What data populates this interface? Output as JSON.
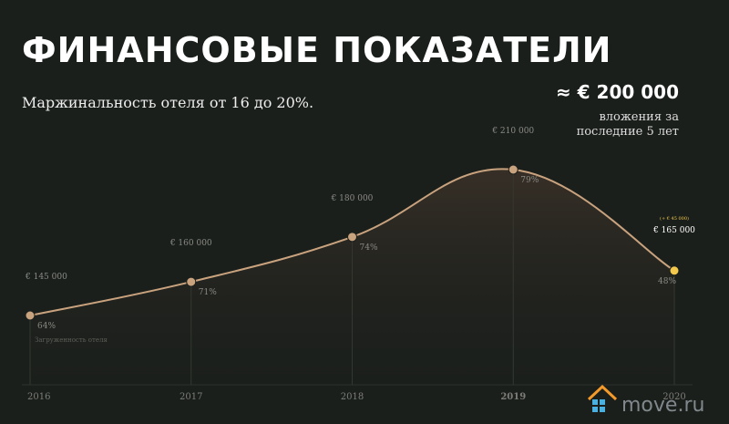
{
  "chart_data": {
    "type": "line",
    "title": "ФИНАНСОВЫЕ ПОКАЗАТЕЛИ",
    "subtitle": "Маржинальность отеля от 16 до 20%.",
    "callout": {
      "value": "≈ € 200 000",
      "text": [
        "вложения за",
        "последние 5 лет"
      ]
    },
    "categories": [
      "2016",
      "2017",
      "2018",
      "2019",
      "2020"
    ],
    "values": [
      145000,
      160000,
      180000,
      210000,
      165000
    ],
    "value_labels": [
      "€ 145 000",
      "€ 160 000",
      "€ 180 000",
      "€ 210 000",
      "€ 165 000"
    ],
    "annotation": "(+ € 45 000)",
    "occupancy": {
      "label": "Загруженность отеля",
      "values": [
        64,
        71,
        74,
        79,
        48
      ],
      "value_labels": [
        "64%",
        "71%",
        "74%",
        "79%",
        "48%"
      ]
    },
    "color": "#c9a27e",
    "highlight_color": "#f2c94c",
    "watermark": "move.ru"
  }
}
